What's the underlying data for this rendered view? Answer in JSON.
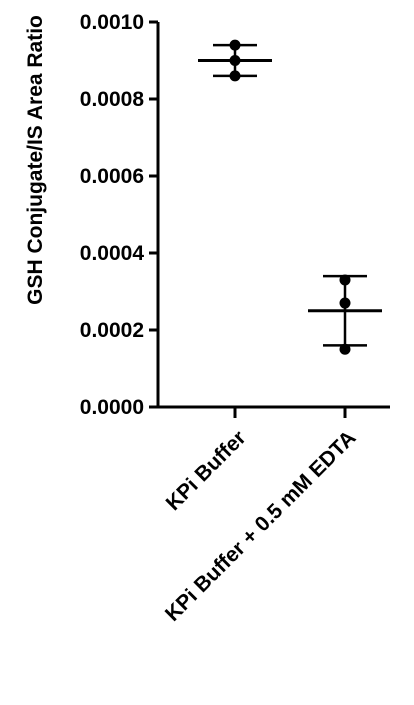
{
  "chart_data": {
    "type": "scatter",
    "title": "",
    "xlabel": "",
    "ylabel": "GSH Conjugate/IS Area Ratio",
    "categories": [
      "KPi Buffer",
      "KPi Buffer + 0.5 mM EDTA"
    ],
    "ylim": [
      0,
      0.001
    ],
    "yticks": [
      "0.0000",
      "0.0002",
      "0.0004",
      "0.0006",
      "0.0008",
      "0.0010"
    ],
    "ytick_values": [
      0,
      0.0002,
      0.0004,
      0.0006,
      0.0008,
      0.001
    ],
    "series": [
      {
        "category": "KPi Buffer",
        "points": [
          0.00094,
          0.0009,
          0.00086
        ],
        "mean": 0.0009,
        "sd_low": 0.00086,
        "sd_high": 0.00094
      },
      {
        "category": "KPi Buffer + 0.5 mM EDTA",
        "points": [
          0.00033,
          0.00027,
          0.00015
        ],
        "mean": 0.00025,
        "sd_low": 0.00016,
        "sd_high": 0.00034
      }
    ],
    "grid": false,
    "marker_color": "#000000"
  }
}
